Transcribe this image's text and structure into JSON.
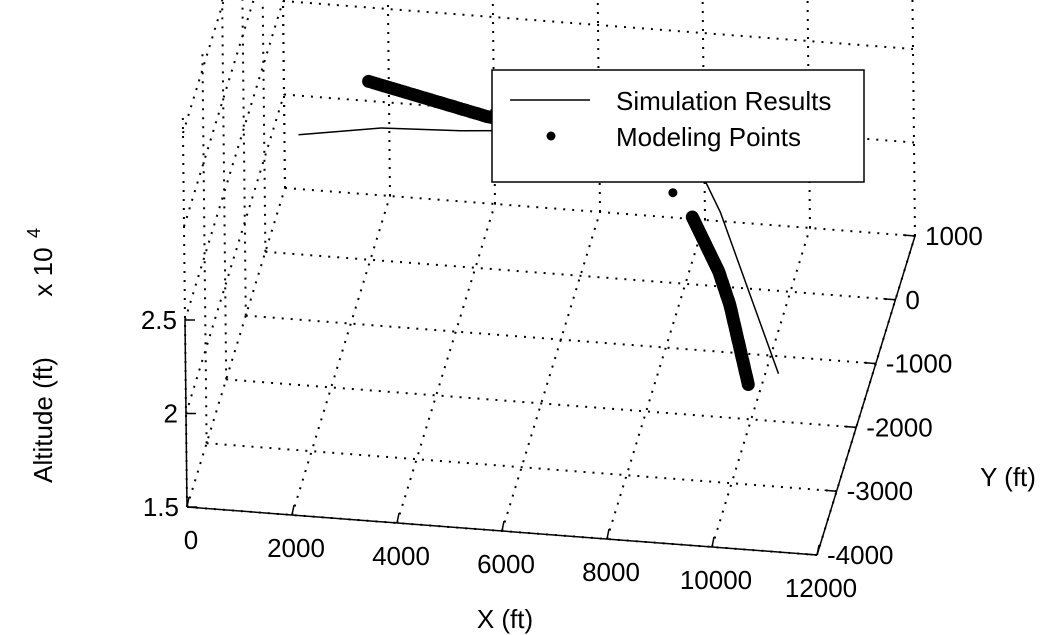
{
  "chart_data": {
    "type": "line",
    "title": "",
    "xlabel": "X (ft)",
    "ylabel": "Y (ft)",
    "zlabel": "Altitude (ft)",
    "z_multiplier": "x 10",
    "z_multiplier_exponent": "4",
    "x_ticks": [
      "0",
      "2000",
      "4000",
      "6000",
      "8000",
      "10000",
      "12000"
    ],
    "y_ticks": [
      "1000",
      "0",
      "-1000",
      "-2000",
      "-3000",
      "-4000"
    ],
    "z_ticks": [
      "2.5",
      "2",
      "1.5"
    ],
    "xlim": [
      0,
      12000
    ],
    "ylim": [
      -4000,
      1000
    ],
    "zlim": [
      1.5,
      2.5
    ],
    "grid": true,
    "legend_position": "top-right",
    "legend": [
      {
        "label": "Simulation Results",
        "marker": "line"
      },
      {
        "label": "Modeling Points",
        "marker": "dot"
      }
    ],
    "series": [
      {
        "name": "Simulation Results",
        "style": "line",
        "x": [
          500,
          2000,
          3500,
          5000,
          6500,
          7500,
          8300,
          8800,
          9300,
          9800,
          10300,
          10800
        ],
        "y": [
          400,
          600,
          650,
          750,
          800,
          600,
          200,
          -300,
          -900,
          -1500,
          -2100,
          -2700
        ],
        "z": [
          2.0,
          2.0,
          2.0,
          2.0,
          2.0,
          2.0,
          2.0,
          2.0,
          2.0,
          2.0,
          2.0,
          2.0
        ]
      },
      {
        "name": "Modeling Points",
        "style": "dots",
        "x": [
          1500,
          2700,
          3900,
          4900,
          5400,
          6000,
          6600,
          7200,
          7800,
          8300,
          8700,
          9100,
          9500,
          9900,
          10300
        ],
        "y": [
          1300,
          1100,
          900,
          800,
          750,
          600,
          450,
          250,
          -50,
          -400,
          -800,
          -1200,
          -1700,
          -2300,
          -2900
        ],
        "z": [
          2.0,
          2.0,
          2.0,
          2.0,
          2.0,
          2.0,
          2.0,
          2.0,
          2.0,
          2.0,
          2.0,
          2.0,
          2.0,
          2.0,
          2.0
        ]
      }
    ]
  }
}
